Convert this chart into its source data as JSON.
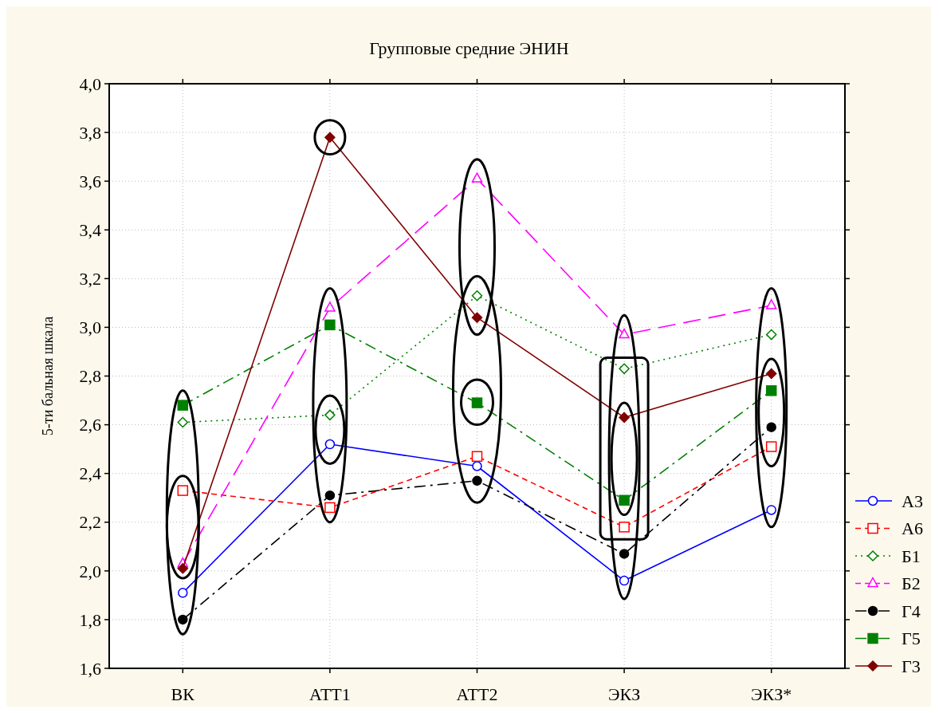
{
  "chart_data": {
    "type": "line",
    "title": "Групповые средние ЭНИН",
    "ylabel": "5-ти бальная шкала",
    "categories": [
      "ВК",
      "АТТ1",
      "АТТ2",
      "ЭКЗ",
      "ЭКЗ*"
    ],
    "ylim": [
      1.6,
      4.0
    ],
    "yticks": [
      {
        "value": 1.6,
        "label": "1,6"
      },
      {
        "value": 1.8,
        "label": "1,8"
      },
      {
        "value": 2.0,
        "label": "2,0"
      },
      {
        "value": 2.2,
        "label": "2,2"
      },
      {
        "value": 2.4,
        "label": "2,4"
      },
      {
        "value": 2.6,
        "label": "2,6"
      },
      {
        "value": 2.8,
        "label": "2,8"
      },
      {
        "value": 3.0,
        "label": "3,0"
      },
      {
        "value": 3.2,
        "label": "3,2"
      },
      {
        "value": 3.4,
        "label": "3,4"
      },
      {
        "value": 3.6,
        "label": "3,6"
      },
      {
        "value": 3.8,
        "label": "3,8"
      },
      {
        "value": 4.0,
        "label": "4,0"
      }
    ],
    "grid": true,
    "legend": "bottom right",
    "series": [
      {
        "name": "А3",
        "color": "#0000ff",
        "marker": "circle",
        "line_style": "solid",
        "values": [
          1.91,
          2.52,
          2.43,
          1.96,
          2.25
        ]
      },
      {
        "name": "А6",
        "color": "#ff0000",
        "marker": "square",
        "line_style": "dashed",
        "values": [
          2.33,
          2.26,
          2.47,
          2.18,
          2.51
        ]
      },
      {
        "name": "Б1",
        "color": "#008000",
        "marker": "diamond",
        "line_style": "dotted",
        "values": [
          2.61,
          2.64,
          3.13,
          2.83,
          2.97
        ]
      },
      {
        "name": "Б2",
        "color": "#ff00ff",
        "marker": "triangle",
        "line_style": "dashed",
        "values": [
          2.03,
          3.08,
          3.61,
          2.97,
          3.09
        ]
      },
      {
        "name": "Г4",
        "color": "#000000",
        "marker": "circle",
        "line_style": "dashed",
        "values": [
          1.8,
          2.31,
          2.37,
          2.07,
          2.59
        ]
      },
      {
        "name": "Г5",
        "color": "#008000",
        "marker": "square",
        "line_style": "dashed",
        "values": [
          2.68,
          3.01,
          2.69,
          2.29,
          2.74
        ]
      },
      {
        "name": "Г3",
        "color": "#800000",
        "marker": "diamond",
        "line_style": "solid",
        "values": [
          2.01,
          3.78,
          3.04,
          2.63,
          2.81
        ]
      }
    ]
  }
}
